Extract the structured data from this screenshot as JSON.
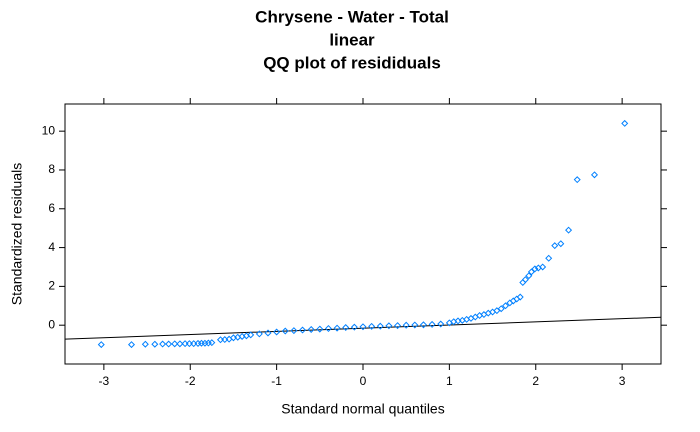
{
  "chart_data": {
    "type": "scatter",
    "title": [
      "Chrysene - Water - Total",
      "linear",
      "QQ plot of resididuals"
    ],
    "x_label": "Standard normal quantiles",
    "y_label": "Standardized residuals",
    "xlim": [
      -3.45,
      3.45
    ],
    "ylim": [
      -2.0,
      11.4
    ],
    "xticks": [
      -3,
      -2,
      -1,
      0,
      1,
      2,
      3
    ],
    "yticks": [
      0,
      2,
      4,
      6,
      8,
      10
    ],
    "color": "#0080ff",
    "reference_line": {
      "x": [
        -3.45,
        3.45
      ],
      "y": [
        -0.72,
        0.41
      ],
      "color": "#000000"
    },
    "x": [
      -3.03,
      -2.68,
      -2.52,
      -2.41,
      -2.32,
      -2.25,
      -2.18,
      -2.12,
      -2.06,
      -2.01,
      -1.96,
      -1.91,
      -1.87,
      -1.83,
      -1.79,
      -1.75,
      -1.65,
      -1.6,
      -1.55,
      -1.5,
      -1.45,
      -1.4,
      -1.35,
      -1.3,
      -1.2,
      -1.1,
      -1.0,
      -0.9,
      -0.8,
      -0.7,
      -0.6,
      -0.5,
      -0.4,
      -0.3,
      -0.2,
      -0.1,
      0,
      0.1,
      0.2,
      0.3,
      0.4,
      0.5,
      0.6,
      0.7,
      0.8,
      0.9,
      1.0,
      1.05,
      1.1,
      1.15,
      1.2,
      1.25,
      1.3,
      1.35,
      1.4,
      1.45,
      1.5,
      1.55,
      1.6,
      1.65,
      1.7,
      1.74,
      1.78,
      1.82,
      1.85,
      1.88,
      1.92,
      1.95,
      1.99,
      2.03,
      2.08,
      2.15,
      2.22,
      2.29,
      2.38,
      2.48,
      2.68,
      3.03
    ],
    "values": [
      -1.0,
      -1.0,
      -0.98,
      -0.98,
      -0.97,
      -0.97,
      -0.96,
      -0.96,
      -0.95,
      -0.95,
      -0.95,
      -0.94,
      -0.93,
      -0.93,
      -0.92,
      -0.9,
      -0.75,
      -0.74,
      -0.72,
      -0.65,
      -0.62,
      -0.58,
      -0.55,
      -0.5,
      -0.45,
      -0.4,
      -0.35,
      -0.3,
      -0.28,
      -0.25,
      -0.22,
      -0.2,
      -0.17,
      -0.15,
      -0.12,
      -0.1,
      -0.08,
      -0.06,
      -0.05,
      -0.03,
      -0.02,
      0,
      0.01,
      0.02,
      0.04,
      0.06,
      0.12,
      0.18,
      0.22,
      0.25,
      0.3,
      0.35,
      0.42,
      0.5,
      0.55,
      0.62,
      0.68,
      0.75,
      0.85,
      1.0,
      1.15,
      1.25,
      1.35,
      1.45,
      2.2,
      2.35,
      2.55,
      2.75,
      2.9,
      2.95,
      3.0,
      3.45,
      4.1,
      4.2,
      4.9,
      7.5,
      7.75,
      10.4
    ]
  }
}
